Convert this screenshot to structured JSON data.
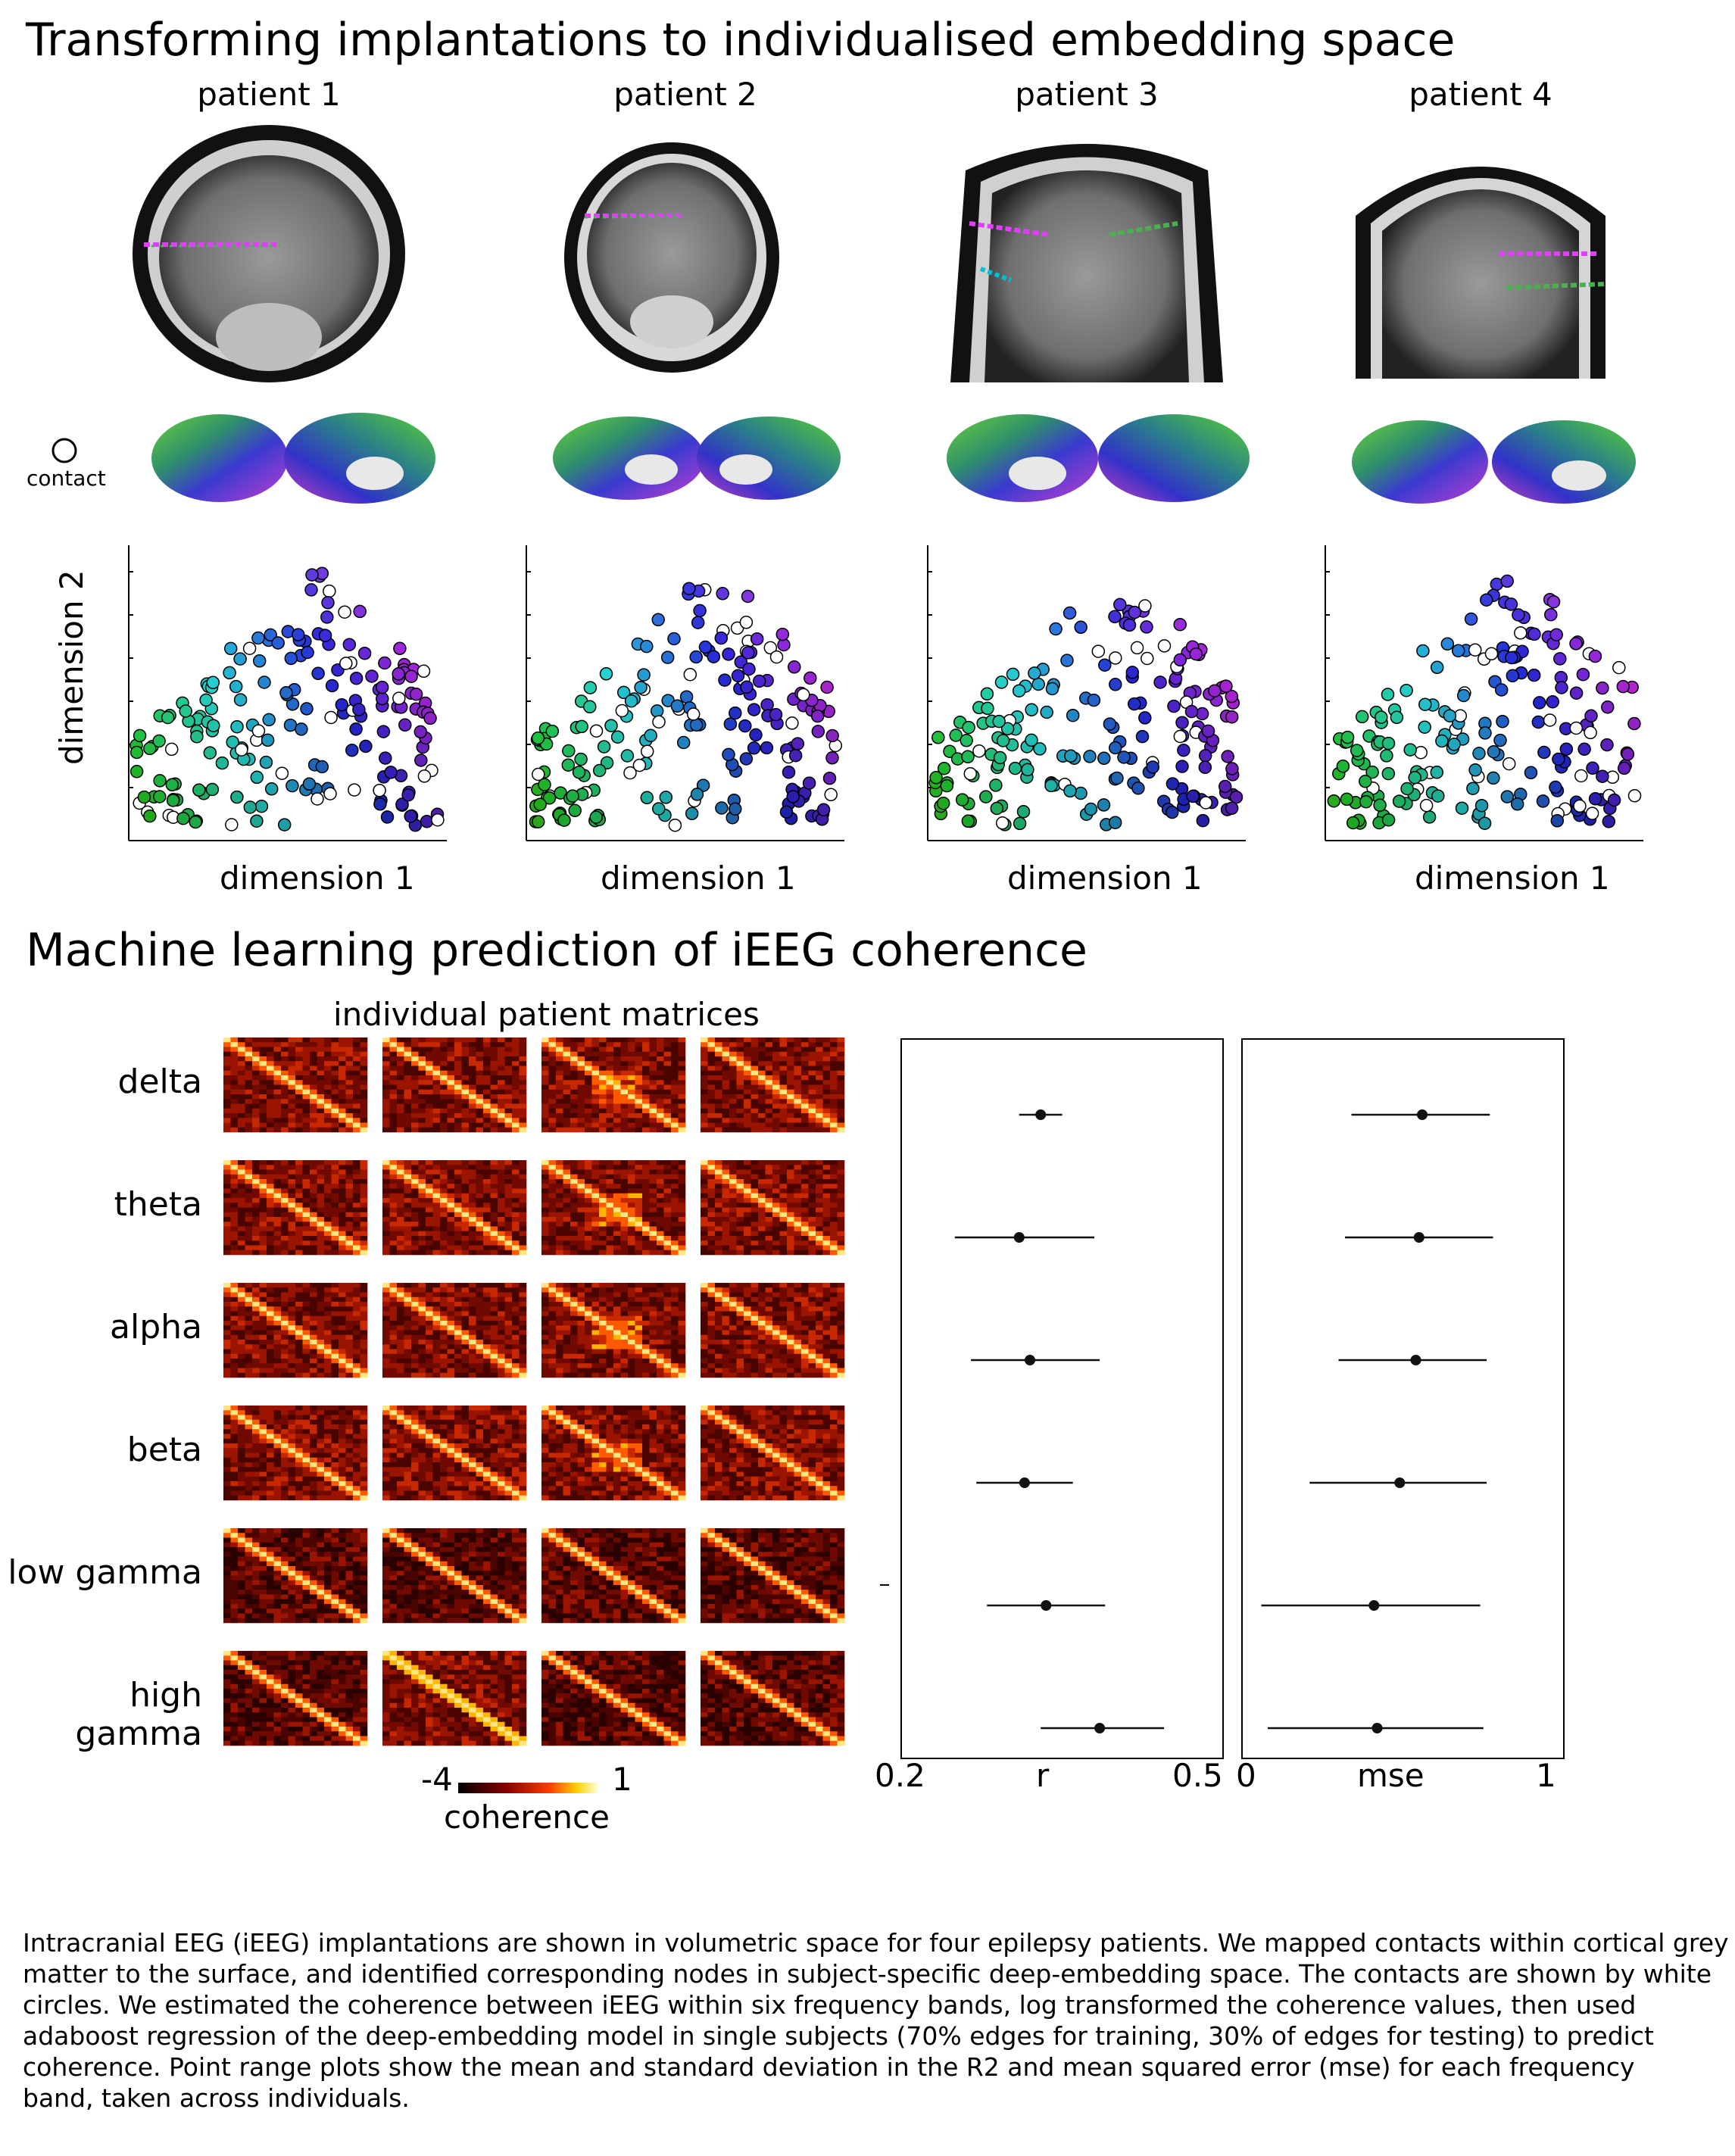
{
  "section1": {
    "title": "Transforming implantations to individualised embedding space",
    "patients": [
      "patient 1",
      "patient 2",
      "patient 3",
      "patient 4"
    ],
    "contact_legend": "contact",
    "xlabel": "dimension 1",
    "ylabel": "dimension 2"
  },
  "section2": {
    "title": "Machine learning prediction of iEEG coherence",
    "matrices_label": "individual patient matrices",
    "bands": [
      "delta",
      "theta",
      "alpha",
      "beta",
      "low gamma",
      "high gamma"
    ],
    "colorbar": {
      "min": "-4",
      "max": "1",
      "label": "coherence"
    }
  },
  "colors": {
    "matrix_dark": "#3a0000",
    "matrix_mid": "#b01800",
    "matrix_hot": "#ffd23c",
    "axis": "#000000"
  },
  "chart_data": [
    {
      "type": "scatter",
      "title": "",
      "xlabel": "dimension 1",
      "ylabel": "dimension 2",
      "note": "four panels, one per patient; points coloured by embedding position; white circles are contacts"
    },
    {
      "type": "scatter",
      "title": "",
      "xlabel": "r",
      "xlim": [
        0.2,
        0.5
      ],
      "tick_labels": [
        "0.2",
        "0.5"
      ],
      "categories": [
        "delta",
        "theta",
        "alpha",
        "beta",
        "low gamma",
        "high gamma"
      ],
      "mean": [
        0.33,
        0.31,
        0.32,
        0.315,
        0.335,
        0.385
      ],
      "sd_low": [
        0.31,
        0.25,
        0.265,
        0.27,
        0.28,
        0.33
      ],
      "sd_high": [
        0.35,
        0.38,
        0.385,
        0.36,
        0.39,
        0.445
      ]
    },
    {
      "type": "scatter",
      "title": "",
      "xlabel": "mse",
      "xlim": [
        0,
        1
      ],
      "tick_labels": [
        "0",
        "1"
      ],
      "categories": [
        "delta",
        "theta",
        "alpha",
        "beta",
        "low gamma",
        "high gamma"
      ],
      "mean": [
        0.56,
        0.55,
        0.54,
        0.49,
        0.41,
        0.42
      ],
      "sd_low": [
        0.34,
        0.32,
        0.3,
        0.21,
        0.06,
        0.08
      ],
      "sd_high": [
        0.77,
        0.78,
        0.76,
        0.76,
        0.74,
        0.75
      ]
    }
  ],
  "caption": [
    "Intracranial EEG (iEEG) implantations are shown in volumetric space for four epilepsy patients. We mapped contacts within cortical grey",
    "matter to the surface, and identified corresponding nodes in subject-specific deep-embedding space. The contacts are shown by white",
    " circles. We estimated the coherence between iEEG within six frequency bands, log transformed the coherence values, then used",
    "adaboost regression of the deep-embedding model in single subjects (70% edges for training, 30% of edges for testing) to predict",
    "coherence. Point range plots show the mean and standard deviation in the R2 and mean squared error (mse) for each frequency",
    "band, taken across individuals."
  ]
}
